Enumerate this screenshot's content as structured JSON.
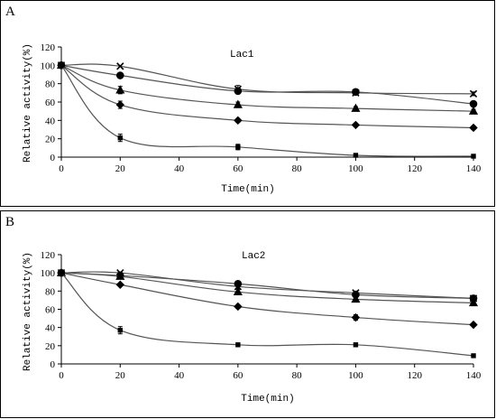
{
  "chart_data": [
    {
      "panel": "A",
      "title": "Lac1",
      "type": "line",
      "xlabel": "Time(min)",
      "ylabel": "Relative activity(%)",
      "xlim": [
        0,
        140
      ],
      "ylim": [
        0,
        120
      ],
      "xticks": [
        "0",
        "20",
        "40",
        "60",
        "80",
        "100",
        "120",
        "140"
      ],
      "yticks": [
        "0",
        "20",
        "40",
        "60",
        "80",
        "100",
        "120"
      ],
      "x": [
        0,
        20,
        60,
        100,
        140
      ],
      "series": [
        {
          "marker": "x-cross",
          "values": [
            100,
            99,
            74,
            70,
            69
          ],
          "errors": [
            0,
            0,
            4,
            2,
            2
          ]
        },
        {
          "marker": "circle",
          "values": [
            100,
            89,
            72,
            71,
            58
          ],
          "errors": [
            0,
            2,
            3,
            3,
            2
          ]
        },
        {
          "marker": "triangle",
          "values": [
            100,
            73,
            57,
            53,
            50
          ],
          "errors": [
            0,
            4,
            3,
            2,
            2
          ]
        },
        {
          "marker": "diamond",
          "values": [
            100,
            57,
            40,
            35,
            32
          ],
          "errors": [
            0,
            4,
            2,
            2,
            2
          ]
        },
        {
          "marker": "square",
          "values": [
            100,
            21,
            11,
            2,
            1
          ],
          "errors": [
            0,
            4,
            3,
            1,
            0
          ]
        }
      ]
    },
    {
      "panel": "B",
      "title": "Lac2",
      "type": "line",
      "xlabel": "Time(min)",
      "ylabel": "Relative activity(%)",
      "xlim": [
        0,
        140
      ],
      "ylim": [
        0,
        120
      ],
      "xticks": [
        "0",
        "20",
        "40",
        "60",
        "80",
        "100",
        "120",
        "140"
      ],
      "yticks": [
        "0",
        "20",
        "40",
        "60",
        "80",
        "100",
        "120"
      ],
      "x": [
        0,
        20,
        60,
        100,
        140
      ],
      "series": [
        {
          "marker": "x-cross",
          "values": [
            100,
            100,
            85,
            78,
            72
          ],
          "errors": [
            0,
            1,
            2,
            2,
            2
          ]
        },
        {
          "marker": "circle",
          "values": [
            100,
            97,
            88,
            76,
            72
          ],
          "errors": [
            0,
            1,
            2,
            2,
            2
          ]
        },
        {
          "marker": "triangle",
          "values": [
            100,
            96,
            79,
            71,
            67
          ],
          "errors": [
            0,
            2,
            3,
            3,
            3
          ]
        },
        {
          "marker": "diamond",
          "values": [
            100,
            87,
            63,
            51,
            43
          ],
          "errors": [
            0,
            1,
            2,
            3,
            1
          ]
        },
        {
          "marker": "square",
          "values": [
            100,
            37,
            21,
            21,
            9
          ],
          "errors": [
            0,
            4,
            2,
            2,
            1
          ]
        }
      ]
    }
  ]
}
